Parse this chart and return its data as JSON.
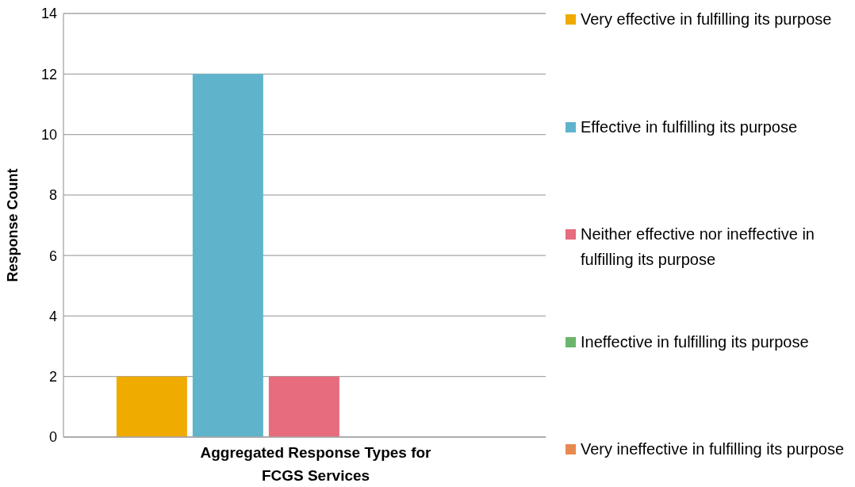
{
  "chart_data": {
    "type": "bar",
    "xlabel": "Aggregated Response Types for FCGS Services",
    "ylabel": "Response Count",
    "categories": [
      null
    ],
    "series": [
      {
        "name": "Very effective in fulfilling its purpose",
        "color": "#f0ab00",
        "values": [
          2
        ]
      },
      {
        "name": "Effective in fulfilling its purpose",
        "color": "#5fb4cc",
        "values": [
          12
        ]
      },
      {
        "name": "Neither effective nor ineffective in fulfilling its purpose",
        "color": "#e76c7e",
        "values": [
          2
        ]
      },
      {
        "name": "Ineffective in fulfilling its purpose",
        "color": "#6bb56c",
        "values": [
          0
        ]
      },
      {
        "name": "Very ineffective in fulfilling its purpose",
        "color": "#e8894f",
        "values": [
          0
        ]
      }
    ],
    "ylim": [
      0,
      14
    ],
    "yticks": [
      0,
      2,
      4,
      6,
      8,
      10,
      12,
      14
    ],
    "grid": "y",
    "legend": "right"
  }
}
